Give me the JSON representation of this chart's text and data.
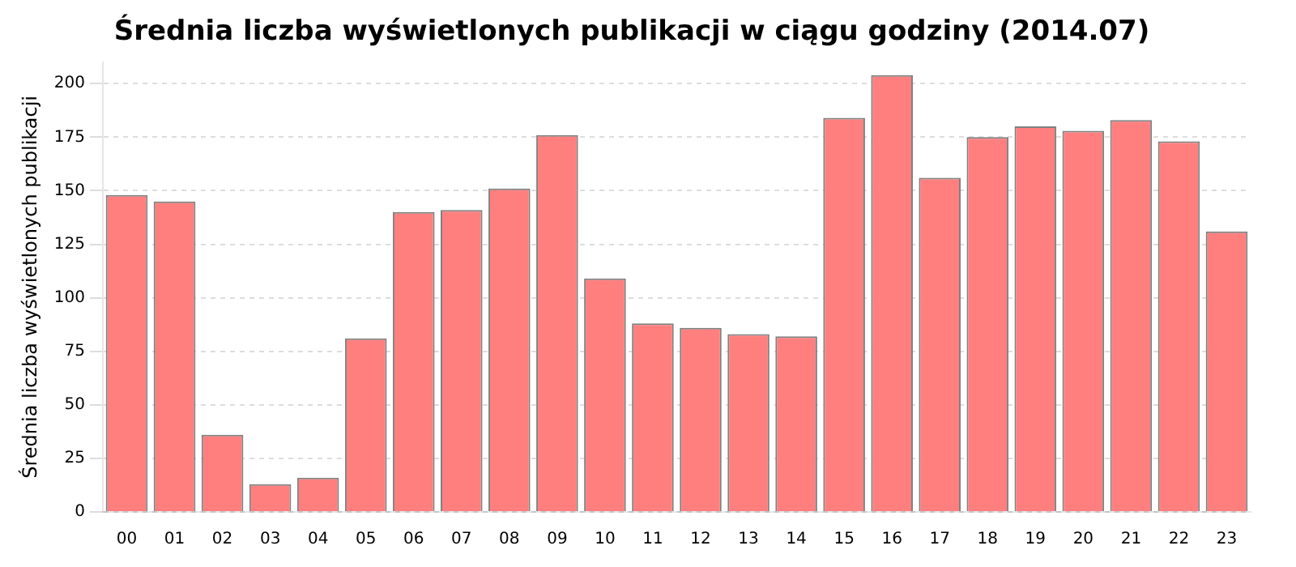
{
  "chart_data": {
    "type": "bar",
    "title": "Średnia liczba wyświetlonych publikacji w ciągu godziny (2014.07)",
    "ylabel": "Średnia liczba wyświetlonych publikacji",
    "categories": [
      "00",
      "01",
      "02",
      "03",
      "04",
      "05",
      "06",
      "07",
      "08",
      "09",
      "10",
      "11",
      "12",
      "13",
      "14",
      "15",
      "16",
      "17",
      "18",
      "19",
      "20",
      "21",
      "22",
      "23"
    ],
    "values": [
      148,
      145,
      36,
      13,
      16,
      81,
      140,
      141,
      151,
      176,
      109,
      88,
      86,
      83,
      82,
      184,
      204,
      156,
      175,
      180,
      178,
      183,
      173,
      131
    ],
    "color": "#ff7f7f",
    "ylim": [
      0,
      210
    ],
    "yticks": [
      0,
      25,
      50,
      75,
      100,
      125,
      150,
      175,
      200
    ],
    "grid": "y",
    "legend": false
  }
}
